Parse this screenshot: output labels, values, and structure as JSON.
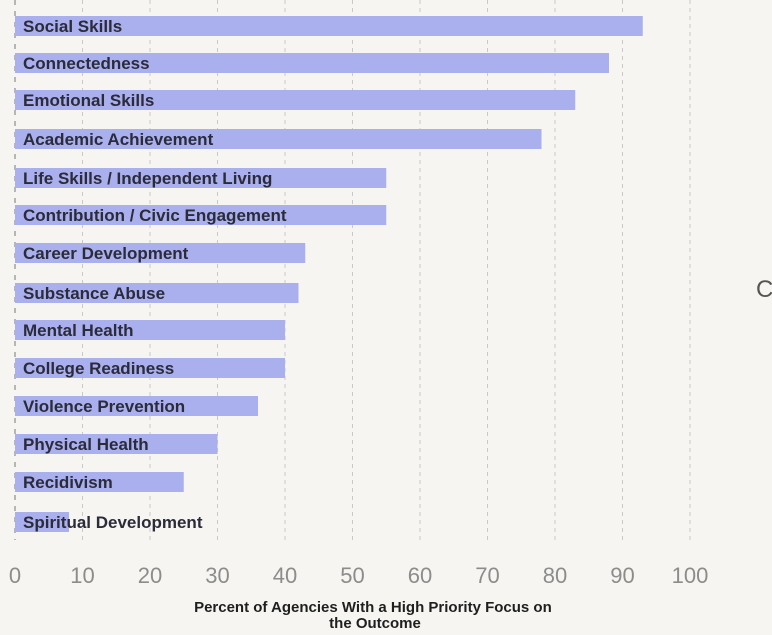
{
  "chart_data": {
    "type": "bar",
    "orientation": "horizontal",
    "categories": [
      "Social Skills",
      "Connectedness",
      "Emotional Skills",
      "Academic Achievement",
      "Life Skills / Independent Living",
      "Contribution / Civic Engagement",
      "Career Development",
      "Substance Abuse",
      "Mental Health",
      "College Readiness",
      "Violence Prevention",
      "Physical Health",
      "Recidivism",
      "Spiritual Development"
    ],
    "values": [
      93,
      88,
      83,
      78,
      55,
      55,
      43,
      42,
      40,
      40,
      36,
      30,
      25,
      8
    ],
    "xlabel": "Percent of Agencies With a High Priority Focus on the Outcome",
    "xlabel_lines": [
      "Percent of Agencies With a High Priority Focus on",
      "the Outcome"
    ],
    "xlim": [
      0,
      100
    ],
    "xticks": [
      "0",
      "10",
      "20",
      "30",
      "40",
      "50",
      "60",
      "70",
      "80",
      "90",
      "100"
    ],
    "grid": true,
    "bar_color": "#aab0ee"
  },
  "edge_text": "C"
}
